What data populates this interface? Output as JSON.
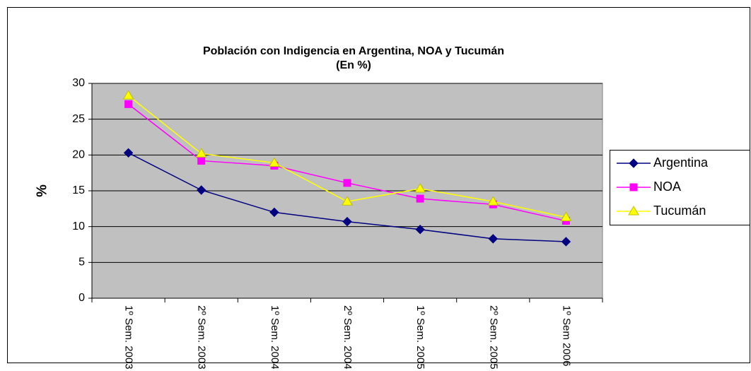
{
  "chart_data": {
    "type": "line",
    "title": "Población con Indigencia en Argentina, NOA y Tucumán",
    "subtitle": "(En %)",
    "y_label": "%",
    "categories": [
      "1º Sem. 2003",
      "2º Sem. 2003",
      "1º Sem. 2004",
      "2º Sem. 2004",
      "1º Sem. 2005",
      "2º Sem. 2005",
      "1º Sem 2006"
    ],
    "series": [
      {
        "name": "Argentina",
        "color": "#000080",
        "marker": "diamond",
        "values": [
          20.3,
          15.1,
          12.0,
          10.7,
          9.6,
          8.3,
          7.9
        ]
      },
      {
        "name": "NOA",
        "color": "#ff00ff",
        "marker": "square",
        "values": [
          27.1,
          19.2,
          18.5,
          16.1,
          13.9,
          13.1,
          10.8
        ]
      },
      {
        "name": "Tucumán",
        "color": "#ffff00",
        "marker": "triangle",
        "values": [
          28.3,
          20.2,
          18.9,
          13.5,
          15.3,
          13.5,
          11.3
        ]
      }
    ],
    "ylim": [
      0,
      30
    ],
    "yticks": [
      0,
      5,
      10,
      15,
      20,
      25,
      30
    ],
    "grid": true,
    "legend": "right",
    "plot_background": "#c0c0c0"
  }
}
